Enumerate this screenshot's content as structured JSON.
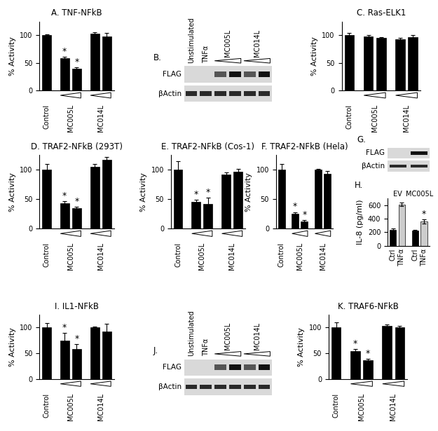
{
  "chart_data": [
    {
      "type": "bar",
      "panel": "A.",
      "title": "TNF-NFkB",
      "ylabel": "% Activity",
      "color": "#000000",
      "ylim": [
        0,
        125
      ],
      "yticks": [
        0,
        50,
        100
      ],
      "significance_label": "*",
      "groups": [
        {
          "label": "Control",
          "values": [
            100
          ],
          "errors": [
            2
          ],
          "significant": [
            false
          ]
        },
        {
          "label": "MC005L",
          "values": [
            58,
            40
          ],
          "errors": [
            3,
            2
          ],
          "significant": [
            true,
            true
          ]
        },
        {
          "label": "MC014L",
          "values": [
            103,
            98
          ],
          "errors": [
            2,
            6
          ],
          "significant": [
            false,
            false
          ]
        }
      ]
    },
    {
      "type": "bar",
      "panel": "C.",
      "title": "Ras-ELK1",
      "ylabel": "% Activity",
      "color": "#000000",
      "ylim": [
        0,
        125
      ],
      "yticks": [
        0,
        50,
        100
      ],
      "significance_label": "*",
      "groups": [
        {
          "label": "Control",
          "values": [
            100
          ],
          "errors": [
            4
          ],
          "significant": [
            false
          ]
        },
        {
          "label": "MC005L",
          "values": [
            98,
            95
          ],
          "errors": [
            3,
            2
          ],
          "significant": [
            false,
            false
          ]
        },
        {
          "label": "MC014L",
          "values": [
            93,
            97
          ],
          "errors": [
            3,
            3
          ],
          "significant": [
            false,
            false
          ]
        }
      ]
    },
    {
      "type": "bar",
      "panel": "D.",
      "title": "TRAF2-NFkB (293T)",
      "ylabel": "% Activity",
      "color": "#000000",
      "ylim": [
        0,
        125
      ],
      "yticks": [
        0,
        50,
        100
      ],
      "significance_label": "*",
      "groups": [
        {
          "label": "Control",
          "values": [
            100
          ],
          "errors": [
            10
          ],
          "significant": [
            false
          ]
        },
        {
          "label": "MC005L",
          "values": [
            43,
            35
          ],
          "errors": [
            4,
            2
          ],
          "significant": [
            true,
            true
          ]
        },
        {
          "label": "MC014L",
          "values": [
            105,
            117
          ],
          "errors": [
            5,
            5
          ],
          "significant": [
            false,
            false
          ]
        }
      ]
    },
    {
      "type": "bar",
      "panel": "E.",
      "title": "TRAF2-NFkB (Cos-1)",
      "ylabel": "% Activity",
      "color": "#000000",
      "ylim": [
        0,
        125
      ],
      "yticks": [
        0,
        50,
        100
      ],
      "significance_label": "*",
      "groups": [
        {
          "label": "Control",
          "values": [
            100
          ],
          "errors": [
            15
          ],
          "significant": [
            false
          ]
        },
        {
          "label": "MC005L",
          "values": [
            45,
            42
          ],
          "errors": [
            4,
            10
          ],
          "significant": [
            true,
            true
          ]
        },
        {
          "label": "MC014L",
          "values": [
            92,
            97
          ],
          "errors": [
            3,
            5
          ],
          "significant": [
            false,
            false
          ]
        }
      ]
    },
    {
      "type": "bar",
      "panel": "F.",
      "title": "TRAF2-NFkB (Hela)",
      "ylabel": "% Activity",
      "color": "#000000",
      "ylim": [
        0,
        125
      ],
      "yticks": [
        0,
        50,
        100
      ],
      "significance_label": "*",
      "groups": [
        {
          "label": "Control",
          "values": [
            100
          ],
          "errors": [
            10
          ],
          "significant": [
            false
          ]
        },
        {
          "label": "MC005L",
          "values": [
            25,
            12
          ],
          "errors": [
            3,
            2
          ],
          "significant": [
            true,
            true
          ]
        },
        {
          "label": "MC014L",
          "values": [
            100,
            93
          ],
          "errors": [
            2,
            5
          ],
          "significant": [
            false,
            false
          ]
        }
      ]
    },
    {
      "type": "bar",
      "panel": "H.",
      "ylabel": "IL-8 (pg/ml)",
      "color": "#000000",
      "ylim": [
        0,
        700
      ],
      "yticks": [
        0,
        200,
        400,
        600
      ],
      "significance_label": "*",
      "groups": [
        {
          "label": "EV",
          "bar_labels": [
            "Ctrl",
            "TNFα"
          ],
          "colors": [
            "#000000",
            "#cccccc"
          ],
          "values": [
            230,
            610
          ],
          "errors": [
            20,
            30
          ],
          "significant": [
            false,
            false
          ]
        },
        {
          "label": "MC005L",
          "bar_labels": [
            "Ctrl",
            "TNFα"
          ],
          "colors": [
            "#000000",
            "#cccccc"
          ],
          "values": [
            220,
            360
          ],
          "errors": [
            10,
            30
          ],
          "significant": [
            false,
            true
          ]
        }
      ]
    },
    {
      "type": "bar",
      "panel": "I.",
      "title": "IL1-NFkB",
      "ylabel": "% Activity",
      "color": "#000000",
      "ylim": [
        0,
        125
      ],
      "yticks": [
        0,
        50,
        100
      ],
      "significance_label": "*",
      "groups": [
        {
          "label": "Control",
          "values": [
            100
          ],
          "errors": [
            8
          ],
          "significant": [
            false
          ]
        },
        {
          "label": "MC005L",
          "values": [
            75,
            58
          ],
          "errors": [
            15,
            10
          ],
          "significant": [
            true,
            true
          ]
        },
        {
          "label": "MC014L",
          "values": [
            100,
            92
          ],
          "errors": [
            2,
            15
          ],
          "significant": [
            false,
            false
          ]
        }
      ]
    },
    {
      "type": "bar",
      "panel": "K.",
      "title": "TRAF6-NFkB",
      "ylabel": "% Activity",
      "color": "#000000",
      "ylim": [
        0,
        125
      ],
      "yticks": [
        0,
        50,
        100
      ],
      "significance_label": "*",
      "groups": [
        {
          "label": "Control",
          "values": [
            100
          ],
          "errors": [
            10
          ],
          "significant": [
            false
          ]
        },
        {
          "label": "MC005L",
          "values": [
            55,
            37
          ],
          "errors": [
            3,
            3
          ],
          "significant": [
            true,
            true
          ]
        },
        {
          "label": "MC014L",
          "values": [
            103,
            100
          ],
          "errors": [
            3,
            3
          ],
          "significant": [
            false,
            false
          ]
        }
      ]
    }
  ],
  "blots": [
    {
      "panel": "B.",
      "rows": [
        "FLAG",
        "βActin"
      ],
      "lane_groups": [
        {
          "label": "Unstimulated",
          "lanes": 1
        },
        {
          "label": "TNFα",
          "lanes": 1
        },
        {
          "label": "MC005L",
          "lanes": 2
        },
        {
          "label": "MC014L",
          "lanes": 2
        }
      ]
    },
    {
      "panel": "G.",
      "rows": [
        "FLAG",
        "βActin"
      ],
      "lane_groups": [
        {
          "lanes": 1
        },
        {
          "lanes": 1
        }
      ]
    },
    {
      "panel": "J.",
      "rows": [
        "FLAG",
        "βActin"
      ],
      "lane_groups": [
        {
          "label": "Unstimulated",
          "lanes": 1
        },
        {
          "label": "TNFα",
          "lanes": 1
        },
        {
          "label": "MC005L",
          "lanes": 2
        },
        {
          "label": "MC014L",
          "lanes": 2
        }
      ]
    }
  ]
}
